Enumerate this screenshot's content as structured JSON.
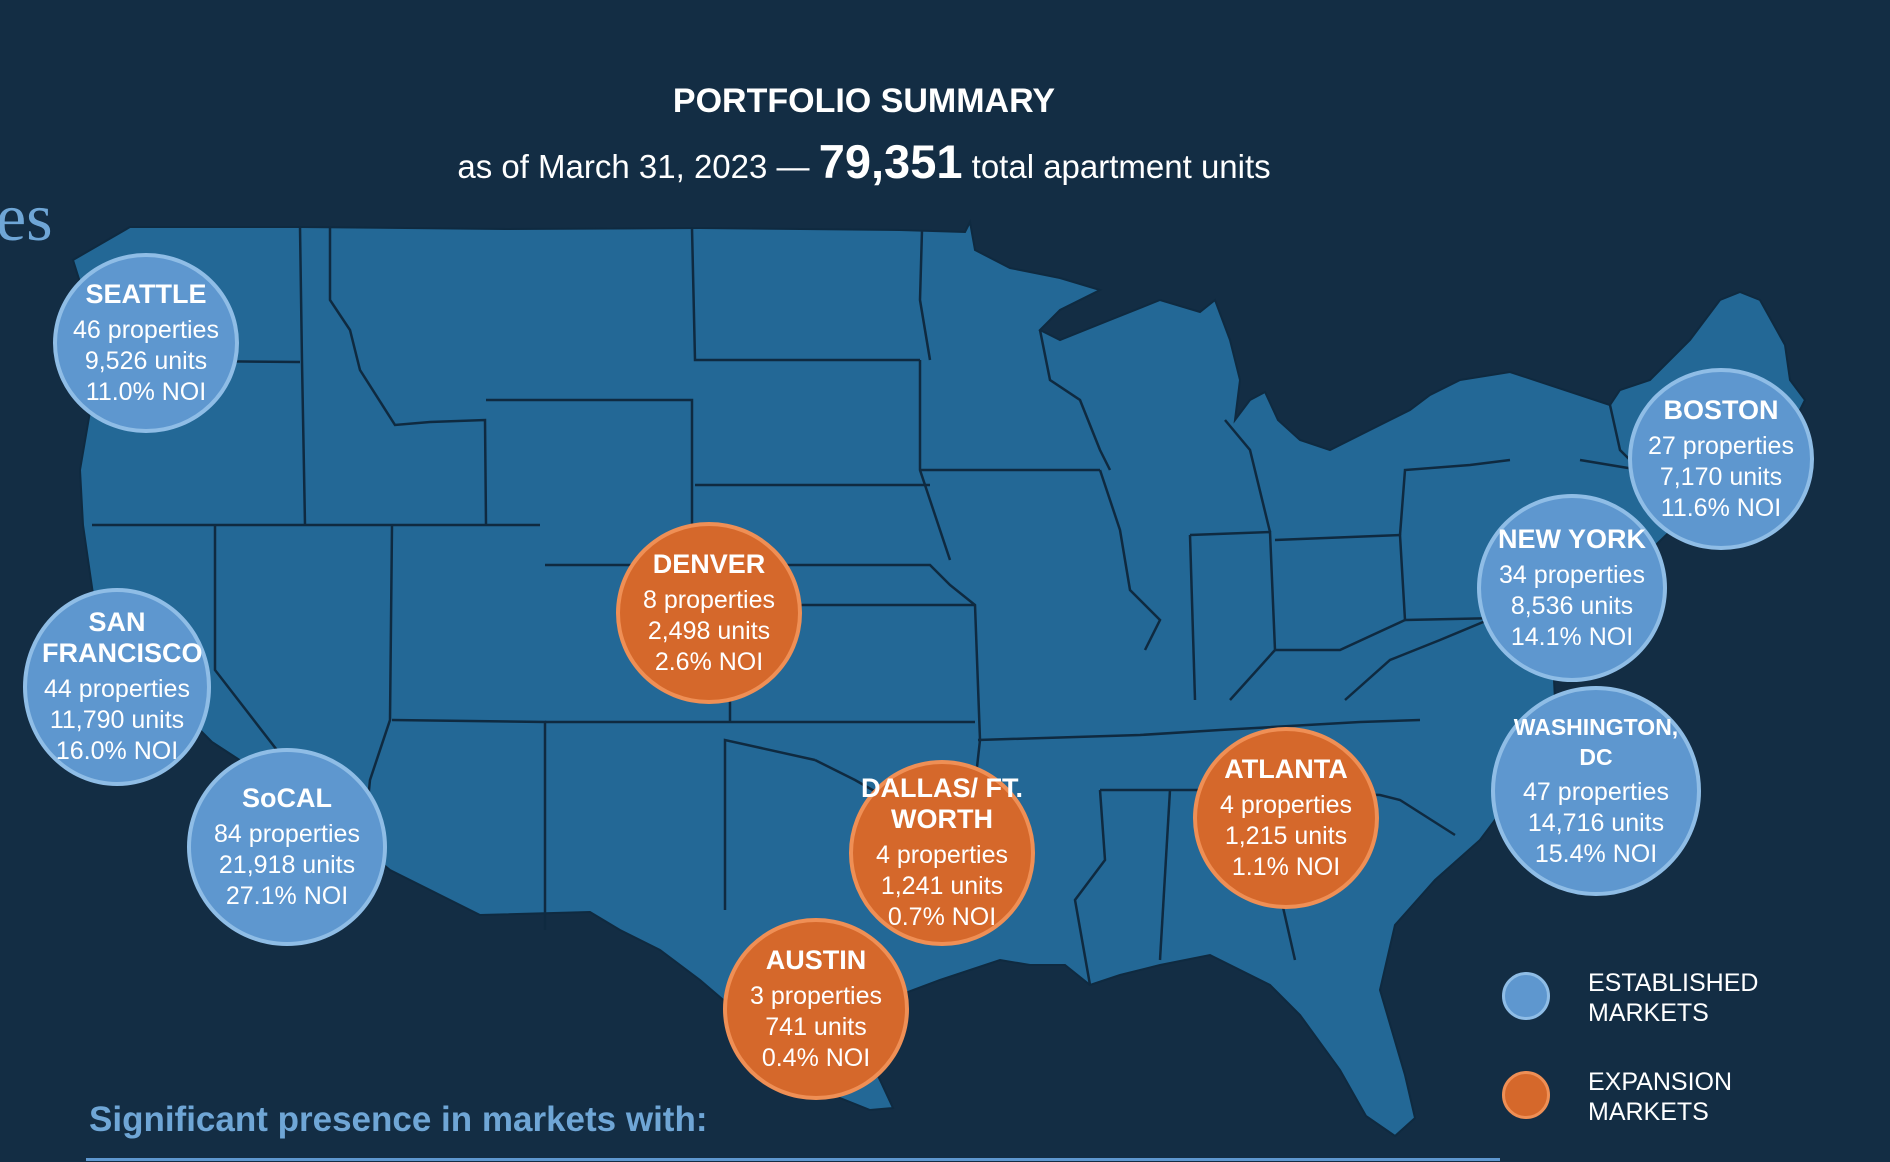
{
  "header": {
    "title": "PORTFOLIO SUMMARY",
    "subtitle_prefix": "as of March 31, 2023 —",
    "total_units": "79,351",
    "subtitle_suffix": "total apartment units"
  },
  "partial_heading": "es",
  "colors": {
    "background": "#132d44",
    "land": "#236896",
    "state_border": "#0f2a40",
    "established": "#5e97cf",
    "expansion": "#d5682b",
    "accent_text": "#6fa6d6"
  },
  "markets": [
    {
      "id": "seattle",
      "type": "established",
      "name": "SEATTLE",
      "properties": "46 properties",
      "units": "9,526 units",
      "noi": "11.0% NOI"
    },
    {
      "id": "san-francisco",
      "type": "established",
      "name": "SAN FRANCISCO",
      "properties": "44 properties",
      "units": "11,790 units",
      "noi": "16.0% NOI"
    },
    {
      "id": "socal",
      "type": "established",
      "name": "SoCAL",
      "properties": "84 properties",
      "units": "21,918 units",
      "noi": "27.1% NOI"
    },
    {
      "id": "denver",
      "type": "expansion",
      "name": "DENVER",
      "properties": "8 properties",
      "units": "2,498 units",
      "noi": "2.6% NOI"
    },
    {
      "id": "dallas",
      "type": "expansion",
      "name": "DALLAS/ FT. WORTH",
      "properties": "4 properties",
      "units": "1,241 units",
      "noi": "0.7% NOI"
    },
    {
      "id": "austin",
      "type": "expansion",
      "name": "AUSTIN",
      "properties": "3 properties",
      "units": "741 units",
      "noi": "0.4% NOI"
    },
    {
      "id": "atlanta",
      "type": "expansion",
      "name": "ATLANTA",
      "properties": "4 properties",
      "units": "1,215 units",
      "noi": "1.1% NOI"
    },
    {
      "id": "washington-dc",
      "type": "established",
      "name": "WASHINGTON, DC",
      "properties": "47 properties",
      "units": "14,716 units",
      "noi": "15.4% NOI"
    },
    {
      "id": "new-york",
      "type": "established",
      "name": "NEW YORK",
      "properties": "34 properties",
      "units": "8,536 units",
      "noi": "14.1% NOI"
    },
    {
      "id": "boston",
      "type": "established",
      "name": "BOSTON",
      "properties": "27 properties",
      "units": "7,170 units",
      "noi": "11.6% NOI"
    }
  ],
  "legend": {
    "established": "ESTABLISHED MARKETS",
    "expansion": "EXPANSION MARKETS"
  },
  "footer": {
    "presence": "Significant presence in markets with:"
  }
}
